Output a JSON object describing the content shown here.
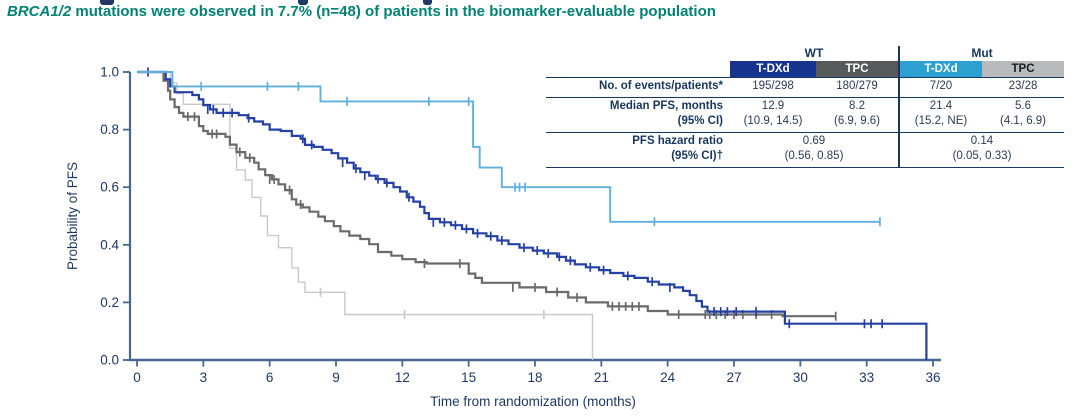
{
  "subtitle": {
    "gene": "BRCA1/2",
    "text": " mutations were observed in 7.7% (n=48) of patients in the biomarker-evaluable population",
    "color": "#008273"
  },
  "table": {
    "group_headers": [
      "WT",
      "Mut"
    ],
    "col_headers": [
      "T-DXd",
      "TPC",
      "T-DXd",
      "TPC"
    ],
    "col_colors": [
      "#16338e",
      "#58595b",
      "#2d9fd0",
      "#b9babc"
    ],
    "col_text_colors": [
      "#ffffff",
      "#ffffff",
      "#ffffff",
      "#1a1a1a"
    ],
    "rows": {
      "events": {
        "label": "No. of events/patients*",
        "values": [
          "195/298",
          "180/279",
          "7/20",
          "23/28"
        ]
      },
      "median": {
        "label": "Median PFS, months",
        "label2": "(95% CI)",
        "values": [
          "12.9",
          "8.2",
          "21.4",
          "5.6"
        ],
        "values2": [
          "(10.9, 14.5)",
          "(6.9, 9.6)",
          "(15.2, NE)",
          "(4.1, 6.9)"
        ]
      },
      "hr": {
        "label": "PFS hazard ratio",
        "label2": "(95% CI)†",
        "wt": "0.69",
        "wt2": "(0.56, 0.85)",
        "mut": "0.14",
        "mut2": "(0.05, 0.33)"
      }
    }
  },
  "chart_data": {
    "type": "line",
    "subtype": "kaplan-meier-step",
    "title": "",
    "xlabel": "Time from randomization (months)",
    "ylabel": "Probability of PFS",
    "xlim": [
      0,
      36
    ],
    "ylim": [
      0,
      1
    ],
    "grid": false,
    "legend_position": "none (table top-right)",
    "xticks": [
      0,
      3,
      6,
      9,
      12,
      15,
      18,
      21,
      24,
      27,
      30,
      33,
      36
    ],
    "ytick_labels": [
      "0.0",
      "0.2",
      "0.4",
      "0.6",
      "0.8",
      "1.0"
    ],
    "axis_color": "#47688e",
    "series": [
      {
        "name": "Mut TPC",
        "color": "#c9c9c9",
        "width": 1.4,
        "end": 20.6,
        "steps": [
          [
            0,
            1.0
          ],
          [
            1.5,
            0.962
          ],
          [
            1.8,
            0.925
          ],
          [
            2.1,
            0.888
          ],
          [
            4.2,
            0.735
          ],
          [
            4.5,
            0.66
          ],
          [
            4.9,
            0.625
          ],
          [
            5.2,
            0.565
          ],
          [
            5.6,
            0.5
          ],
          [
            5.9,
            0.432
          ],
          [
            6.4,
            0.39
          ],
          [
            7.0,
            0.32
          ],
          [
            7.3,
            0.27
          ],
          [
            7.6,
            0.235
          ],
          [
            9.4,
            0.158
          ],
          [
            20.6,
            0.0
          ]
        ],
        "censors": [
          [
            8.3,
            0.235
          ],
          [
            12.1,
            0.158
          ],
          [
            18.4,
            0.158
          ]
        ]
      },
      {
        "name": "WT TPC",
        "color": "#6a6a6a",
        "width": 2.2,
        "end": 31.6,
        "steps": [
          [
            0,
            1.0
          ],
          [
            1.2,
            0.97
          ],
          [
            1.4,
            0.935
          ],
          [
            1.5,
            0.905
          ],
          [
            1.7,
            0.878
          ],
          [
            1.9,
            0.858
          ],
          [
            2.1,
            0.845
          ],
          [
            2.8,
            0.812
          ],
          [
            3.0,
            0.795
          ],
          [
            3.2,
            0.785
          ],
          [
            4.0,
            0.775
          ],
          [
            4.2,
            0.748
          ],
          [
            4.5,
            0.722
          ],
          [
            4.9,
            0.702
          ],
          [
            5.3,
            0.685
          ],
          [
            5.5,
            0.662
          ],
          [
            5.8,
            0.642
          ],
          [
            6.1,
            0.627
          ],
          [
            6.4,
            0.61
          ],
          [
            6.7,
            0.59
          ],
          [
            7.0,
            0.558
          ],
          [
            7.2,
            0.54
          ],
          [
            7.5,
            0.53
          ],
          [
            7.8,
            0.515
          ],
          [
            8.2,
            0.498
          ],
          [
            8.5,
            0.482
          ],
          [
            8.9,
            0.465
          ],
          [
            9.2,
            0.447
          ],
          [
            9.6,
            0.432
          ],
          [
            10.1,
            0.42
          ],
          [
            10.5,
            0.402
          ],
          [
            10.9,
            0.375
          ],
          [
            11.5,
            0.362
          ],
          [
            12.0,
            0.35
          ],
          [
            12.6,
            0.34
          ],
          [
            13.1,
            0.335
          ],
          [
            15.0,
            0.3
          ],
          [
            15.3,
            0.285
          ],
          [
            15.6,
            0.268
          ],
          [
            17.3,
            0.252
          ],
          [
            18.5,
            0.236
          ],
          [
            19.5,
            0.217
          ],
          [
            20.3,
            0.2
          ],
          [
            21.3,
            0.186
          ],
          [
            23.1,
            0.17
          ],
          [
            24.0,
            0.158
          ],
          [
            29.2,
            0.152
          ]
        ],
        "censors": [
          [
            2.3,
            0.845
          ],
          [
            2.6,
            0.845
          ],
          [
            3.4,
            0.785
          ],
          [
            3.6,
            0.785
          ],
          [
            4.65,
            0.722
          ],
          [
            5.1,
            0.702
          ],
          [
            6.0,
            0.627
          ],
          [
            6.2,
            0.627
          ],
          [
            6.9,
            0.59
          ],
          [
            7.4,
            0.54
          ],
          [
            13.0,
            0.335
          ],
          [
            14.6,
            0.335
          ],
          [
            17.0,
            0.252
          ],
          [
            18.0,
            0.252
          ],
          [
            19.0,
            0.236
          ],
          [
            19.9,
            0.217
          ],
          [
            21.5,
            0.186
          ],
          [
            21.8,
            0.186
          ],
          [
            22.1,
            0.186
          ],
          [
            22.4,
            0.186
          ],
          [
            22.7,
            0.186
          ],
          [
            24.5,
            0.158
          ],
          [
            25.7,
            0.158
          ],
          [
            25.9,
            0.158
          ],
          [
            26.2,
            0.158
          ],
          [
            26.6,
            0.158
          ],
          [
            27.0,
            0.158
          ],
          [
            27.4,
            0.158
          ],
          [
            28.0,
            0.158
          ],
          [
            28.7,
            0.158
          ],
          [
            31.6,
            0.152
          ]
        ]
      },
      {
        "name": "WT T-DXd",
        "color": "#2540a5",
        "width": 2.2,
        "end": 35.7,
        "steps": [
          [
            0,
            1.0
          ],
          [
            1.3,
            0.975
          ],
          [
            1.5,
            0.95
          ],
          [
            1.7,
            0.93
          ],
          [
            2.5,
            0.92
          ],
          [
            2.8,
            0.905
          ],
          [
            3.0,
            0.885
          ],
          [
            3.3,
            0.87
          ],
          [
            3.6,
            0.858
          ],
          [
            4.6,
            0.85
          ],
          [
            5.0,
            0.84
          ],
          [
            5.3,
            0.828
          ],
          [
            5.7,
            0.818
          ],
          [
            6.0,
            0.8
          ],
          [
            6.5,
            0.795
          ],
          [
            7.0,
            0.778
          ],
          [
            7.4,
            0.768
          ],
          [
            7.6,
            0.747
          ],
          [
            8.0,
            0.74
          ],
          [
            8.4,
            0.73
          ],
          [
            8.8,
            0.718
          ],
          [
            9.1,
            0.7
          ],
          [
            9.5,
            0.685
          ],
          [
            9.8,
            0.665
          ],
          [
            10.1,
            0.652
          ],
          [
            10.5,
            0.64
          ],
          [
            10.8,
            0.628
          ],
          [
            11.2,
            0.615
          ],
          [
            11.6,
            0.6
          ],
          [
            11.9,
            0.585
          ],
          [
            12.2,
            0.565
          ],
          [
            12.5,
            0.55
          ],
          [
            12.8,
            0.532
          ],
          [
            13.0,
            0.51
          ],
          [
            13.2,
            0.49
          ],
          [
            13.7,
            0.478
          ],
          [
            14.2,
            0.468
          ],
          [
            14.7,
            0.455
          ],
          [
            15.2,
            0.44
          ],
          [
            15.8,
            0.43
          ],
          [
            16.3,
            0.415
          ],
          [
            16.8,
            0.402
          ],
          [
            17.3,
            0.39
          ],
          [
            17.9,
            0.38
          ],
          [
            18.4,
            0.37
          ],
          [
            19.0,
            0.358
          ],
          [
            19.4,
            0.345
          ],
          [
            19.8,
            0.332
          ],
          [
            20.3,
            0.322
          ],
          [
            20.9,
            0.312
          ],
          [
            21.4,
            0.302
          ],
          [
            22.0,
            0.292
          ],
          [
            22.5,
            0.285
          ],
          [
            23.1,
            0.272
          ],
          [
            23.6,
            0.262
          ],
          [
            24.3,
            0.252
          ],
          [
            24.7,
            0.24
          ],
          [
            25.0,
            0.225
          ],
          [
            25.3,
            0.205
          ],
          [
            25.55,
            0.185
          ],
          [
            25.8,
            0.168
          ],
          [
            29.3,
            0.126
          ],
          [
            35.7,
            0.0
          ]
        ],
        "censors": [
          [
            0.5,
            1.0
          ],
          [
            3.2,
            0.87
          ],
          [
            3.45,
            0.87
          ],
          [
            3.9,
            0.858
          ],
          [
            4.3,
            0.858
          ],
          [
            5.05,
            0.84
          ],
          [
            7.5,
            0.768
          ],
          [
            7.9,
            0.747
          ],
          [
            9.3,
            0.685
          ],
          [
            9.9,
            0.665
          ],
          [
            10.3,
            0.64
          ],
          [
            10.9,
            0.628
          ],
          [
            11.3,
            0.615
          ],
          [
            12.3,
            0.565
          ],
          [
            13.4,
            0.478
          ],
          [
            13.9,
            0.478
          ],
          [
            14.4,
            0.468
          ],
          [
            14.9,
            0.455
          ],
          [
            15.4,
            0.44
          ],
          [
            16.0,
            0.43
          ],
          [
            16.5,
            0.415
          ],
          [
            17.5,
            0.39
          ],
          [
            18.1,
            0.38
          ],
          [
            18.6,
            0.37
          ],
          [
            19.1,
            0.358
          ],
          [
            19.6,
            0.345
          ],
          [
            20.5,
            0.322
          ],
          [
            21.1,
            0.312
          ],
          [
            22.2,
            0.292
          ],
          [
            23.3,
            0.272
          ],
          [
            24.1,
            0.252
          ],
          [
            26.1,
            0.168
          ],
          [
            26.4,
            0.168
          ],
          [
            26.7,
            0.168
          ],
          [
            27.1,
            0.168
          ],
          [
            28.0,
            0.168
          ],
          [
            29.5,
            0.126
          ],
          [
            32.9,
            0.126
          ],
          [
            33.2,
            0.126
          ],
          [
            33.7,
            0.126
          ]
        ]
      },
      {
        "name": "Mut T-DXd",
        "color": "#5fafdd",
        "width": 1.9,
        "end": 33.6,
        "steps": [
          [
            0,
            1.0
          ],
          [
            1.6,
            0.95
          ],
          [
            8.3,
            0.898
          ],
          [
            15.2,
            0.74
          ],
          [
            15.5,
            0.668
          ],
          [
            16.5,
            0.6
          ],
          [
            21.4,
            0.48
          ]
        ],
        "censors": [
          [
            2.9,
            0.95
          ],
          [
            5.9,
            0.95
          ],
          [
            7.3,
            0.95
          ],
          [
            9.5,
            0.898
          ],
          [
            13.2,
            0.898
          ],
          [
            15.0,
            0.898
          ],
          [
            17.1,
            0.6
          ],
          [
            17.3,
            0.6
          ],
          [
            17.55,
            0.6
          ],
          [
            23.4,
            0.48
          ],
          [
            33.6,
            0.48
          ]
        ]
      }
    ]
  }
}
